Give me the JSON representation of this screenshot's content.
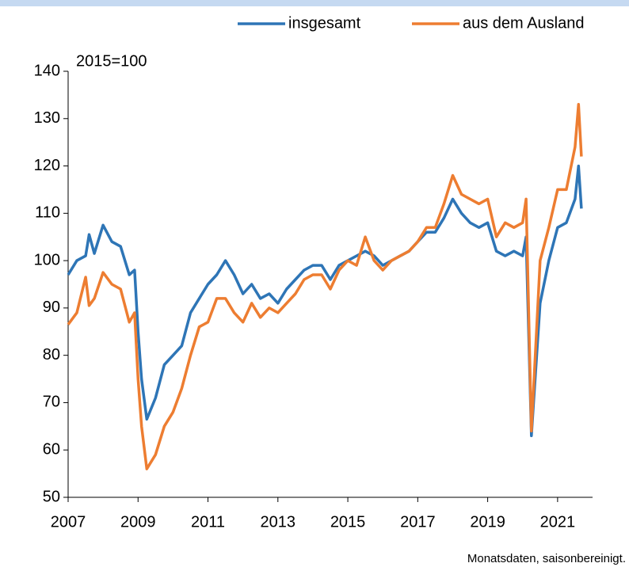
{
  "chart_data": {
    "type": "line",
    "unit_label": "2015=100",
    "note": "Monatsdaten, saisonbereinigt.",
    "x": [
      2007.0,
      2007.25,
      2007.5,
      2007.6,
      2007.75,
      2008.0,
      2008.25,
      2008.5,
      2008.75,
      2008.9,
      2009.0,
      2009.1,
      2009.25,
      2009.5,
      2009.75,
      2010.0,
      2010.25,
      2010.5,
      2010.75,
      2011.0,
      2011.25,
      2011.5,
      2011.75,
      2012.0,
      2012.25,
      2012.5,
      2012.75,
      2013.0,
      2013.25,
      2013.5,
      2013.75,
      2014.0,
      2014.25,
      2014.5,
      2014.75,
      2015.0,
      2015.25,
      2015.5,
      2015.75,
      2016.0,
      2016.25,
      2016.5,
      2016.75,
      2017.0,
      2017.25,
      2017.5,
      2017.75,
      2018.0,
      2018.25,
      2018.5,
      2018.75,
      2019.0,
      2019.25,
      2019.5,
      2019.75,
      2020.0,
      2020.1,
      2020.25,
      2020.5,
      2020.75,
      2021.0,
      2021.25,
      2021.5,
      2021.6,
      2021.68
    ],
    "series": [
      {
        "name": "insgesamt",
        "color": "#2e75b6",
        "values": [
          97,
          100,
          101,
          105.5,
          101.5,
          107.5,
          104,
          103,
          97,
          98,
          85,
          75,
          66.5,
          71,
          78,
          80,
          82,
          89,
          92,
          95,
          97,
          100,
          97,
          93,
          95,
          92,
          93,
          91,
          94,
          96,
          98,
          99,
          99,
          96,
          99,
          100,
          101,
          102,
          101,
          99,
          100,
          101,
          102,
          104,
          106,
          106,
          109,
          113,
          110,
          108,
          107,
          108,
          102,
          101,
          102,
          101,
          105,
          63,
          91,
          100,
          107,
          108,
          113,
          120,
          111
        ]
      },
      {
        "name": "aus dem Ausland",
        "color": "#ed7d31",
        "values": [
          86.5,
          89,
          96.5,
          90.5,
          92,
          97.5,
          95,
          94,
          87,
          89,
          75,
          65,
          56,
          59,
          65,
          68,
          73,
          80,
          86,
          87,
          92,
          92,
          89,
          87,
          91,
          88,
          90,
          89,
          91,
          93,
          96,
          97,
          97,
          94,
          98,
          100,
          99,
          105,
          100,
          98,
          100,
          101,
          102,
          104,
          107,
          107,
          112,
          118,
          114,
          113,
          112,
          113,
          105,
          108,
          107,
          108,
          113,
          64,
          100,
          107,
          115,
          115,
          124,
          133,
          122
        ]
      }
    ],
    "xlim": [
      2007,
      2022
    ],
    "xticks": [
      2007,
      2009,
      2011,
      2013,
      2015,
      2017,
      2019,
      2021
    ],
    "ylim": [
      50,
      140
    ],
    "yticks": [
      50,
      60,
      70,
      80,
      90,
      100,
      110,
      120,
      130,
      140
    ],
    "legend": "top-right"
  }
}
